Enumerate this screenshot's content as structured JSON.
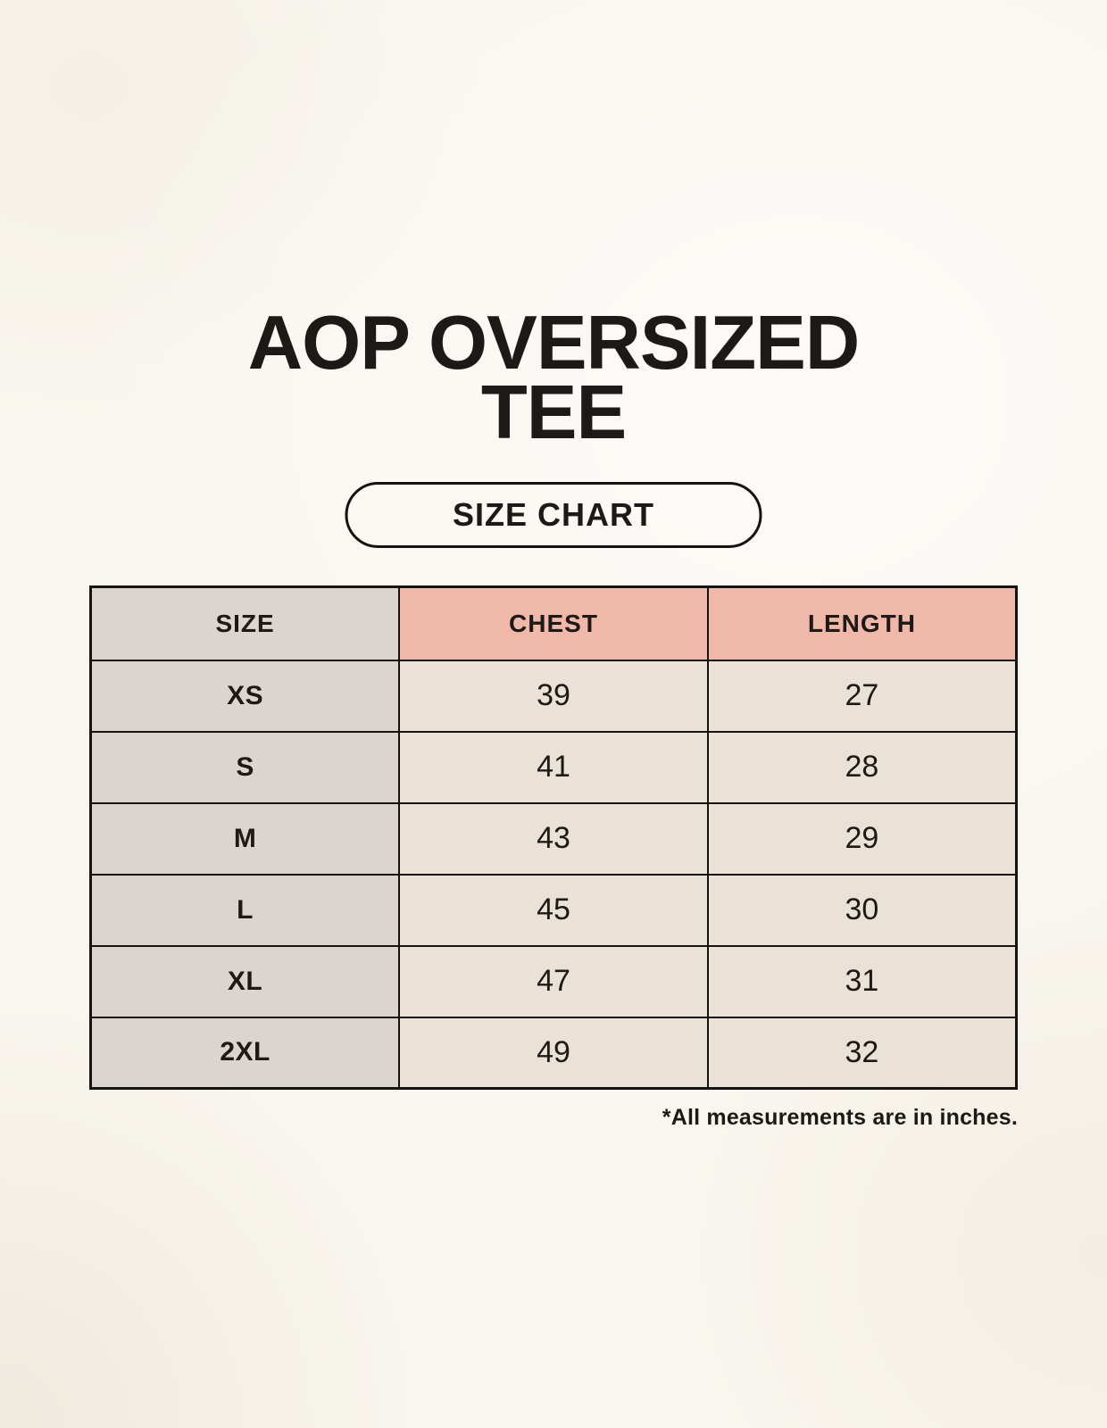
{
  "page": {
    "title_line1": "AOP OVERSIZED",
    "title_line2": "TEE",
    "badge_label": "SIZE CHART",
    "footnote": "*All measurements are in inches."
  },
  "table": {
    "columns": [
      {
        "label": "SIZE"
      },
      {
        "label": "CHEST"
      },
      {
        "label": "LENGTH"
      }
    ],
    "rows": [
      {
        "size": "XS",
        "chest": "39",
        "length": "27"
      },
      {
        "size": "S",
        "chest": "41",
        "length": "28"
      },
      {
        "size": "M",
        "chest": "43",
        "length": "29"
      },
      {
        "size": "L",
        "chest": "45",
        "length": "30"
      },
      {
        "size": "XL",
        "chest": "47",
        "length": "31"
      },
      {
        "size": "2XL",
        "chest": "49",
        "length": "32"
      }
    ]
  },
  "colors": {
    "background": "#f9f6ef",
    "text": "#1c1916",
    "table_border": "#161210",
    "size_column_bg": "#dbd4cf",
    "measure_header_bg": "#f0b8a8",
    "value_cell_bg": "#eae2d6"
  }
}
